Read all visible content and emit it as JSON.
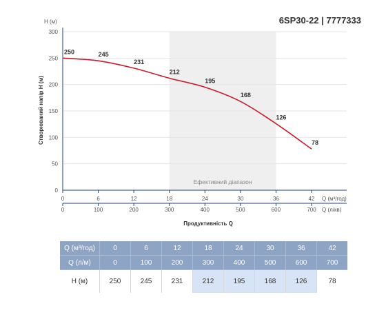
{
  "model_title": "6SP30-22 | 7777333",
  "chart_data": {
    "type": "line",
    "ylabel": "Створюваний напір H (м)",
    "y_unit": "H (м)",
    "xlabel": "Продуктивність Q",
    "x_unit_primary": "Q (м³/год)",
    "x_unit_secondary": "Q (л/кв)",
    "ylim": [
      0,
      300
    ],
    "xlim": [
      0,
      42
    ],
    "y_ticks": [
      0,
      50,
      100,
      150,
      200,
      250,
      300
    ],
    "x_ticks_primary": [
      0,
      6,
      12,
      18,
      24,
      30,
      36,
      42
    ],
    "x_ticks_secondary": [
      0,
      100,
      200,
      300,
      400,
      500,
      600,
      700
    ],
    "efficiency_range": [
      18,
      36
    ],
    "efficiency_label": "Ефективний діапазон",
    "series": [
      {
        "x": [
          0,
          6,
          12,
          18,
          24,
          30,
          36,
          42
        ],
        "values": [
          250,
          245,
          231,
          212,
          195,
          168,
          126,
          78
        ],
        "color": "#cc1a2d"
      }
    ]
  },
  "table": {
    "rows": [
      {
        "label": "Q (м³/год)",
        "values": [
          "0",
          "6",
          "12",
          "18",
          "24",
          "30",
          "36",
          "42"
        ]
      },
      {
        "label": "Q (л/м)",
        "values": [
          "0",
          "100",
          "200",
          "300",
          "400",
          "500",
          "600",
          "700"
        ]
      },
      {
        "label": "H (м)",
        "values": [
          "250",
          "245",
          "231",
          "212",
          "195",
          "168",
          "126",
          "78"
        ]
      }
    ],
    "highlight_columns": [
      3,
      4,
      5,
      6
    ]
  },
  "colors": {
    "curve": "#cc1a2d",
    "efficiency_band": "#efefef",
    "header_bg": "#8da4c4",
    "highlight_cell": "#d6e4f5"
  }
}
